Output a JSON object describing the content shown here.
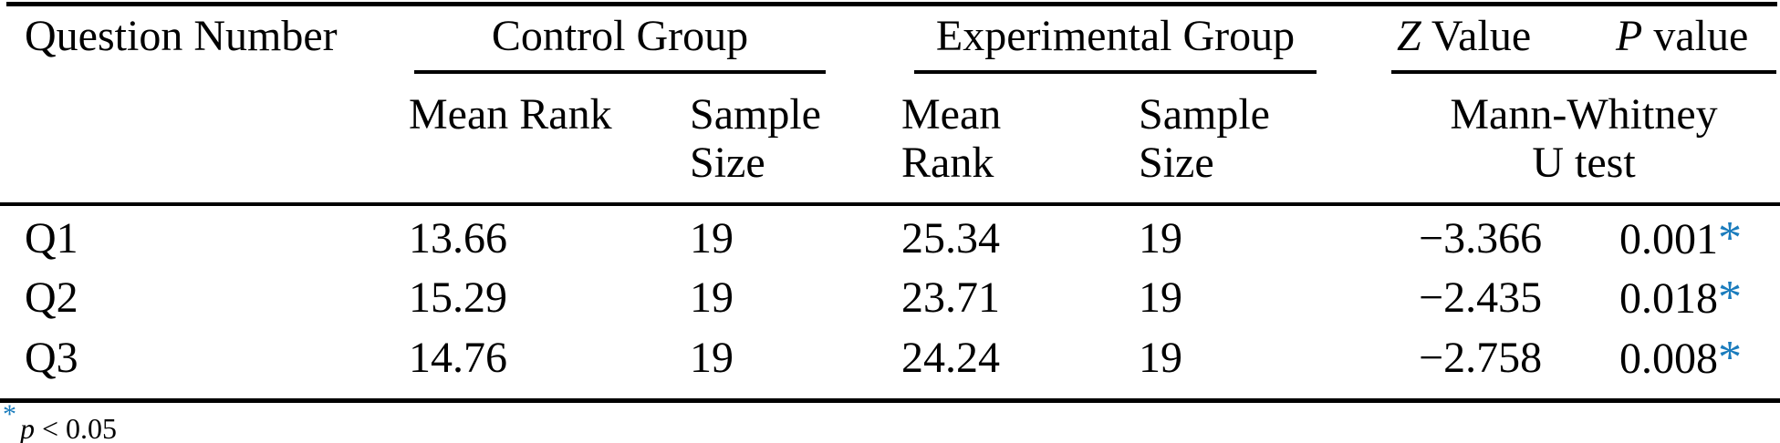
{
  "table": {
    "header": {
      "question_number": "Question Number",
      "control_group": "Control Group",
      "experimental_group": "Experimental Group",
      "z_italic": "Z",
      "z_rest": " Value",
      "p_italic": "P",
      "p_rest": " value",
      "control_sub": {
        "mean_rank": "Mean Rank",
        "sample_line1": "Sample",
        "sample_line2": "Size"
      },
      "experimental_sub": {
        "mean_line1": "Mean",
        "mean_line2": "Rank",
        "sample_line1": "Sample",
        "sample_line2": "Size"
      },
      "test_sub": {
        "line1": "Mann-Whitney",
        "line2": "U test"
      }
    },
    "rows": [
      {
        "q": "Q1",
        "control_mean": "13.66",
        "control_n": "19",
        "exp_mean": "25.34",
        "exp_n": "19",
        "z": "−3.366",
        "p": "0.001",
        "sig": "*"
      },
      {
        "q": "Q2",
        "control_mean": "15.29",
        "control_n": "19",
        "exp_mean": "23.71",
        "exp_n": "19",
        "z": "−2.435",
        "p": "0.018",
        "sig": "*"
      },
      {
        "q": "Q3",
        "control_mean": "14.76",
        "control_n": "19",
        "exp_mean": "24.24",
        "exp_n": "19",
        "z": "−2.758",
        "p": "0.008",
        "sig": "*"
      }
    ],
    "footnote": {
      "marker": "*",
      "p": "p",
      "rest": " < 0.05"
    }
  },
  "colors": {
    "significance_blue": "#1a7cbd",
    "text": "#000000",
    "rule": "#000000",
    "background": "#ffffff"
  }
}
